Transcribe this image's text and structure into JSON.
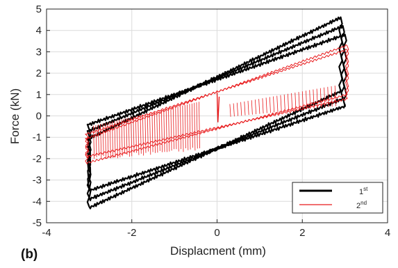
{
  "chart_data": {
    "type": "line",
    "panel_label": "(b)",
    "xlabel": "Displacment (mm)",
    "ylabel": "Force (kN)",
    "xlim": [
      -4,
      4
    ],
    "ylim": [
      -5,
      5
    ],
    "xticks": [
      -4,
      -2,
      0,
      2,
      4
    ],
    "yticks": [
      -5,
      -4,
      -3,
      -2,
      -1,
      0,
      1,
      2,
      3,
      4,
      5
    ],
    "grid": true,
    "legend_position": "bottom-right",
    "series": [
      {
        "name": "1st",
        "legend_base": "1",
        "legend_sup": "st",
        "color": "#000000",
        "loops": [
          {
            "xmax": 2.9,
            "fmax": 4.6,
            "xmin": -3.0,
            "fmin": -4.3,
            "upper_neg": -1.05,
            "lower_pos": 1.15
          },
          {
            "xmax": 2.95,
            "fmax": 4.2,
            "xmin": -3.0,
            "fmin": -3.9,
            "upper_neg": -0.7,
            "lower_pos": 0.8
          },
          {
            "xmax": 3.0,
            "fmax": 3.8,
            "xmin": -3.0,
            "fmin": -3.5,
            "upper_neg": -0.4,
            "lower_pos": 0.45
          }
        ]
      },
      {
        "name": "2nd",
        "legend_base": "2",
        "legend_sup": "nd",
        "color": "#e8191b",
        "loops": [
          {
            "xmax": 3.05,
            "fmax": 3.3,
            "xmin": -3.05,
            "fmin": -2.2,
            "upper_neg": -1.05,
            "lower_pos": 1.0
          },
          {
            "xmax": 3.05,
            "fmax": 3.1,
            "xmin": -3.05,
            "fmin": -1.9,
            "upper_neg": -0.85,
            "lower_pos": 0.8
          }
        ]
      }
    ]
  }
}
